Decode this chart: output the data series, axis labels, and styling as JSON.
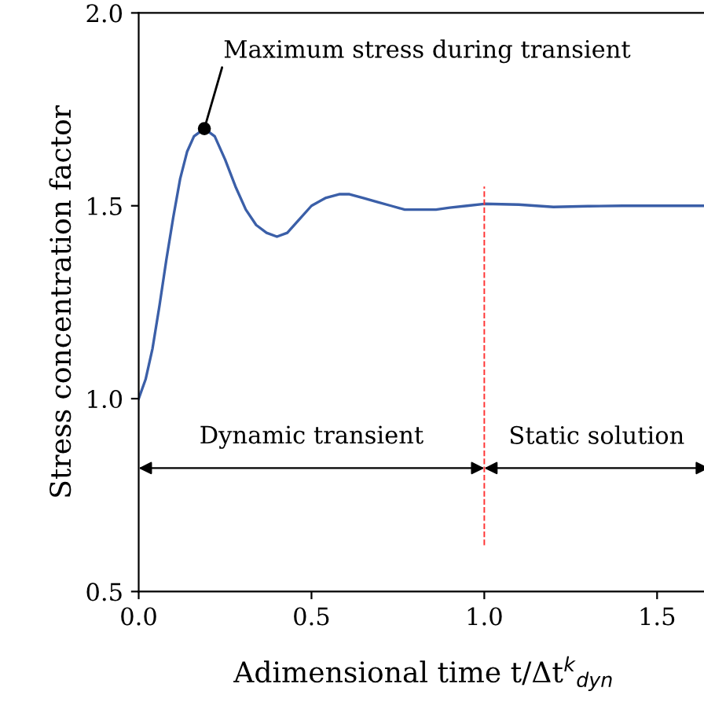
{
  "chart_data": {
    "type": "line",
    "xlabel": "Adimensional time t/Δt$^{k}$$_{dyn}$",
    "ylabel": "Stress concentration factor",
    "xlim": [
      0,
      1.65
    ],
    "ylim": [
      0.5,
      2.0
    ],
    "xticks": [
      {
        "value": 0,
        "label": "0.0"
      },
      0.5,
      {
        "value": 1,
        "label": "1.0"
      },
      1.5
    ],
    "yticks": [
      0.5,
      {
        "value": 1,
        "label": "1.0"
      },
      1.5,
      {
        "value": 2,
        "label": "2.0"
      }
    ],
    "grid": false,
    "series": [
      {
        "color": "#3b5fa8",
        "x": [
          0,
          0.02,
          0.04,
          0.06,
          0.08,
          0.1,
          0.12,
          0.14,
          0.16,
          0.19,
          0.22,
          0.25,
          0.28,
          0.31,
          0.34,
          0.37,
          0.4,
          0.43,
          0.46,
          0.5,
          0.54,
          0.58,
          0.61,
          0.65,
          0.69,
          0.73,
          0.77,
          0.81,
          0.86,
          0.9,
          0.95,
          1.0,
          1.1,
          1.2,
          1.3,
          1.4,
          1.5,
          1.64
        ],
        "values": [
          1.0,
          1.05,
          1.13,
          1.24,
          1.36,
          1.47,
          1.57,
          1.64,
          1.68,
          1.7,
          1.68,
          1.62,
          1.55,
          1.49,
          1.45,
          1.43,
          1.42,
          1.43,
          1.46,
          1.5,
          1.52,
          1.53,
          1.53,
          1.52,
          1.51,
          1.5,
          1.49,
          1.49,
          1.49,
          1.495,
          1.5,
          1.505,
          1.503,
          1.497,
          1.499,
          1.5,
          1.5,
          1.5
        ]
      }
    ],
    "ref_lines": [
      {
        "axis": "x",
        "value": 1.0,
        "color": "#ff3333",
        "line_style": "dashed"
      }
    ],
    "annotations": [
      {
        "text": "Maximum stress during transient",
        "x": 0.19,
        "y": 1.7
      },
      "Dynamic transient",
      "Static solution"
    ]
  }
}
